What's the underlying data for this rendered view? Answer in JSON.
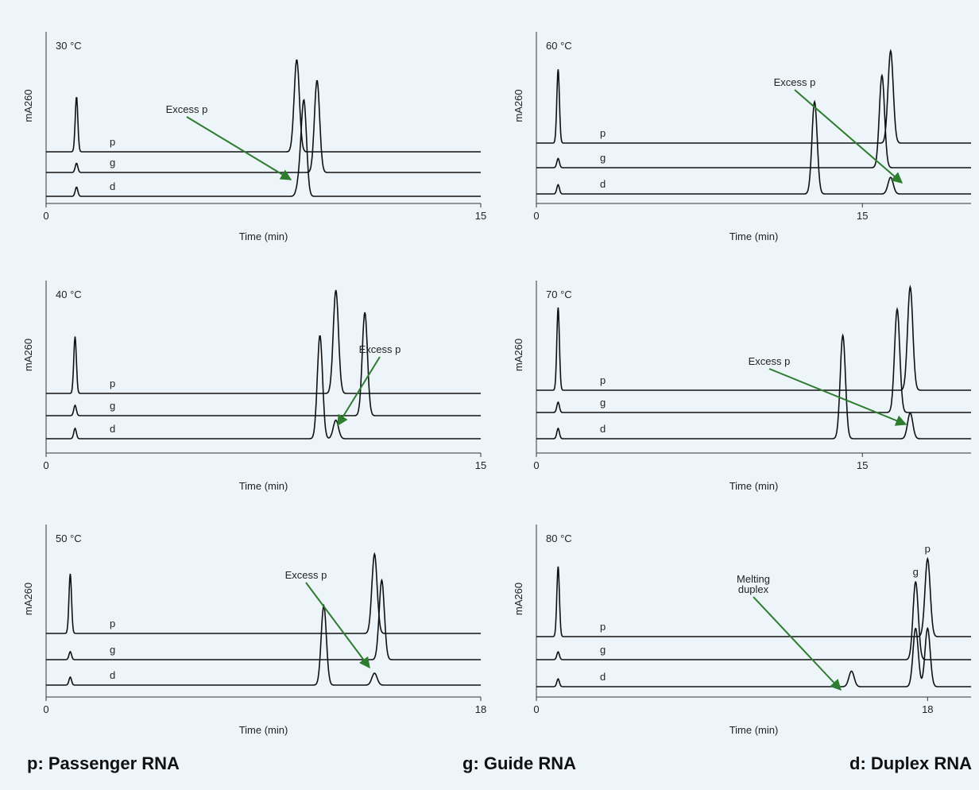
{
  "colors": {
    "background": "#edf5fb",
    "trace": "#111111",
    "arrow": "#2e7d2e"
  },
  "footer": {
    "passenger": "p: Passenger RNA",
    "guide": "g: Guide RNA",
    "duplex": "d: Duplex RNA"
  },
  "chart_data": [
    {
      "type": "line",
      "temperature": "30 °C",
      "xlabel": "Time (min)",
      "ylabel": "mA260",
      "xlim": [
        0,
        15
      ],
      "xticks": [
        0,
        15
      ],
      "series": [
        {
          "name": "p",
          "peaks": [
            {
              "t": 1.05,
              "h": 0.6
            },
            {
              "t": 8.65,
              "h": 1.0
            }
          ]
        },
        {
          "name": "g",
          "peaks": [
            {
              "t": 1.05,
              "h": 0.1
            },
            {
              "t": 9.35,
              "h": 1.0
            }
          ]
        },
        {
          "name": "d",
          "peaks": [
            {
              "t": 1.05,
              "h": 0.1
            },
            {
              "t": 8.75,
              "h": 0.18
            },
            {
              "t": 8.9,
              "h": 1.0
            }
          ]
        }
      ],
      "annotation": {
        "text": "Excess p",
        "points_to": {
          "series": "d",
          "t": 8.75
        }
      }
    },
    {
      "type": "line",
      "temperature": "60 °C",
      "xlabel": "Time (min)",
      "ylabel": "mA260",
      "xlim": [
        0,
        20
      ],
      "xticks": [
        0,
        15
      ],
      "series": [
        {
          "name": "p",
          "peaks": [
            {
              "t": 1.0,
              "h": 0.8
            },
            {
              "t": 16.3,
              "h": 1.0
            }
          ]
        },
        {
          "name": "g",
          "peaks": [
            {
              "t": 1.0,
              "h": 0.1
            },
            {
              "t": 15.9,
              "h": 1.0
            }
          ]
        },
        {
          "name": "d",
          "peaks": [
            {
              "t": 1.0,
              "h": 0.1
            },
            {
              "t": 12.8,
              "h": 1.0
            },
            {
              "t": 16.3,
              "h": 0.18
            }
          ]
        }
      ],
      "annotation": {
        "text": "Excess p",
        "points_to": {
          "series": "d",
          "t": 16.3
        }
      }
    },
    {
      "type": "line",
      "temperature": "40 °C",
      "xlabel": "Time (min)",
      "ylabel": "mA260",
      "xlim": [
        0,
        15
      ],
      "xticks": [
        0,
        15
      ],
      "series": [
        {
          "name": "p",
          "peaks": [
            {
              "t": 1.0,
              "h": 0.55
            },
            {
              "t": 10.0,
              "h": 1.0
            }
          ]
        },
        {
          "name": "g",
          "peaks": [
            {
              "t": 1.0,
              "h": 0.1
            },
            {
              "t": 11.0,
              "h": 1.0
            }
          ]
        },
        {
          "name": "d",
          "peaks": [
            {
              "t": 1.0,
              "h": 0.1
            },
            {
              "t": 9.45,
              "h": 1.0
            },
            {
              "t": 10.0,
              "h": 0.18
            }
          ]
        }
      ],
      "annotation": {
        "text": "Excess p",
        "points_to": {
          "series": "d",
          "t": 10.0
        }
      }
    },
    {
      "type": "line",
      "temperature": "70 °C",
      "xlabel": "Time (min)",
      "ylabel": "mA260",
      "xlim": [
        0,
        20
      ],
      "xticks": [
        0,
        15
      ],
      "series": [
        {
          "name": "p",
          "peaks": [
            {
              "t": 1.0,
              "h": 0.8
            },
            {
              "t": 17.2,
              "h": 1.0
            }
          ]
        },
        {
          "name": "g",
          "peaks": [
            {
              "t": 1.0,
              "h": 0.1
            },
            {
              "t": 16.6,
              "h": 1.0
            }
          ]
        },
        {
          "name": "d",
          "peaks": [
            {
              "t": 1.0,
              "h": 0.1
            },
            {
              "t": 14.1,
              "h": 1.0
            },
            {
              "t": 17.2,
              "h": 0.25
            }
          ]
        }
      ],
      "annotation": {
        "text": "Excess p",
        "points_to": {
          "series": "d",
          "t": 17.2
        }
      }
    },
    {
      "type": "line",
      "temperature": "50 °C",
      "xlabel": "Time (min)",
      "ylabel": "mA260",
      "xlim": [
        0,
        18
      ],
      "xticks": [
        0,
        18
      ],
      "series": [
        {
          "name": "p",
          "peaks": [
            {
              "t": 1.0,
              "h": 0.75
            },
            {
              "t": 13.6,
              "h": 1.0
            }
          ]
        },
        {
          "name": "g",
          "peaks": [
            {
              "t": 1.0,
              "h": 0.1
            },
            {
              "t": 13.9,
              "h": 1.0
            }
          ]
        },
        {
          "name": "d",
          "peaks": [
            {
              "t": 1.0,
              "h": 0.1
            },
            {
              "t": 11.5,
              "h": 1.0
            },
            {
              "t": 13.6,
              "h": 0.15
            }
          ]
        }
      ],
      "annotation": {
        "text": "Excess p",
        "points_to": {
          "series": "d",
          "t": 13.6
        }
      }
    },
    {
      "type": "line",
      "temperature": "80 °C",
      "xlabel": "Time (min)",
      "ylabel": "mA260",
      "xlim": [
        0,
        20
      ],
      "xticks": [
        0,
        18
      ],
      "series": [
        {
          "name": "p",
          "peaks": [
            {
              "t": 1.0,
              "h": 0.9
            },
            {
              "t": 18.0,
              "h": 1.0
            }
          ]
        },
        {
          "name": "g",
          "peaks": [
            {
              "t": 1.0,
              "h": 0.1
            },
            {
              "t": 17.45,
              "h": 1.0
            }
          ]
        },
        {
          "name": "d",
          "peaks": [
            {
              "t": 1.0,
              "h": 0.1
            },
            {
              "t": 14.5,
              "h": 0.2
            },
            {
              "t": 17.45,
              "h": 0.75
            },
            {
              "t": 18.0,
              "h": 0.75
            }
          ]
        }
      ],
      "peak_labels": [
        {
          "text": "g",
          "series": "g",
          "t": 17.45
        },
        {
          "text": "p",
          "series": "p",
          "t": 18.0
        }
      ],
      "annotation": {
        "text": "Melting\nduplex",
        "points_to": {
          "series": "d",
          "t": 14.5
        }
      }
    }
  ]
}
